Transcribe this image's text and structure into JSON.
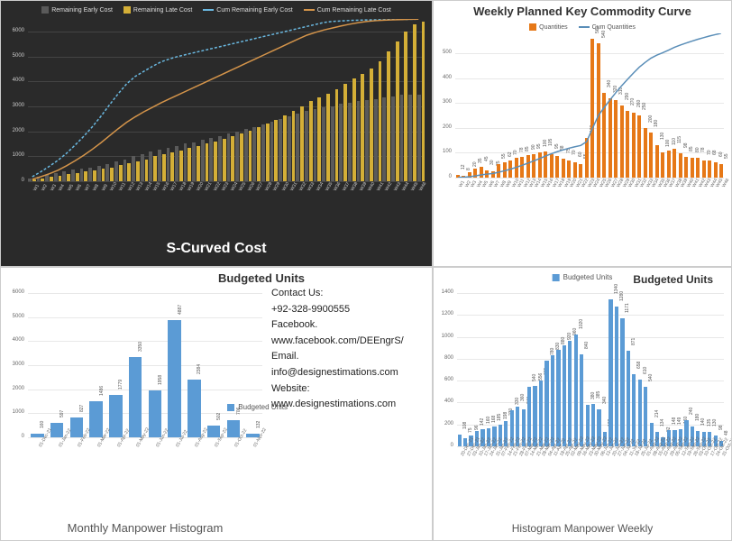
{
  "scurve": {
    "title": "S-Curved Cost",
    "legend": [
      {
        "label": "Remaining Early Cost",
        "type": "bar",
        "color": "#5a5a5a"
      },
      {
        "label": "Remaining Late Cost",
        "type": "bar",
        "color": "#d4af37"
      },
      {
        "label": "Cum Remaining Early Cost",
        "type": "line",
        "color": "#6ab8e0"
      },
      {
        "label": "Cum Remaining Late Cost",
        "type": "line",
        "color": "#d4944a"
      }
    ],
    "ymax": 6500,
    "ytick_step": 1000,
    "background_color": "#2a2a2a",
    "bars_early_color": "#5a5a5a",
    "bars_late_color": "#d4af37",
    "line_early_color": "#6ab8e0",
    "line_late_color": "#d4944a",
    "grid_color": "#444444",
    "text_color": "#cccccc",
    "categories": [
      "W1",
      "W2",
      "W3",
      "W4",
      "W5",
      "W6",
      "W7",
      "W8",
      "W9",
      "W10",
      "W11",
      "W12",
      "W13",
      "W14",
      "W15",
      "W16",
      "W17",
      "W18",
      "W19",
      "W20",
      "W21",
      "W22",
      "W23",
      "W24",
      "W25",
      "W26",
      "W27",
      "W28",
      "W29",
      "W30",
      "W31",
      "W32",
      "W33",
      "W34",
      "W35",
      "W36",
      "W37",
      "W38",
      "W39",
      "W40",
      "W41",
      "W42",
      "W43",
      "W44",
      "W45",
      "W46"
    ],
    "early": [
      120,
      180,
      260,
      320,
      400,
      480,
      500,
      560,
      620,
      700,
      780,
      860,
      1000,
      1100,
      1200,
      1280,
      1350,
      1420,
      1500,
      1560,
      1650,
      1720,
      1800,
      1900,
      1980,
      2080,
      2180,
      2280,
      2400,
      2500,
      2600,
      2700,
      2800,
      2880,
      2960,
      3000,
      3100,
      3150,
      3200,
      3260,
      3300,
      3350,
      3400,
      3450,
      3460,
      3480
    ],
    "late": [
      80,
      120,
      180,
      220,
      280,
      320,
      380,
      440,
      500,
      560,
      640,
      720,
      800,
      880,
      1000,
      1100,
      1160,
      1240,
      1320,
      1400,
      1500,
      1600,
      1700,
      1800,
      1920,
      2040,
      2160,
      2300,
      2460,
      2620,
      2800,
      3000,
      3200,
      3360,
      3500,
      3700,
      3900,
      4100,
      4300,
      4500,
      4800,
      5200,
      5600,
      6000,
      6300,
      6400
    ],
    "cum_early": [
      180,
      380,
      600,
      840,
      1120,
      1450,
      1800,
      2180,
      2600,
      3060,
      3500,
      3900,
      4200,
      4400,
      4600,
      4780,
      4900,
      5000,
      5080,
      5160,
      5240,
      5320,
      5400,
      5480,
      5560,
      5640,
      5720,
      5800,
      5880,
      5960,
      6040,
      6120,
      6200,
      6280,
      6360,
      6400,
      6420,
      6440,
      6450,
      6460,
      6465,
      6470,
      6475,
      6480,
      6485,
      6490
    ],
    "cum_late": [
      80,
      180,
      300,
      440,
      620,
      820,
      1040,
      1280,
      1540,
      1820,
      2100,
      2360,
      2580,
      2780,
      2960,
      3140,
      3300,
      3460,
      3620,
      3780,
      3940,
      4100,
      4260,
      4420,
      4580,
      4740,
      4900,
      5060,
      5220,
      5380,
      5540,
      5700,
      5850,
      5960,
      6060,
      6140,
      6220,
      6290,
      6350,
      6400,
      6430,
      6450,
      6465,
      6475,
      6485,
      6490
    ]
  },
  "weekly_commodity": {
    "title": "Weekly Planned Key Commodity Curve",
    "legend": [
      {
        "label": "Quantities",
        "type": "bar",
        "color": "#e67817"
      },
      {
        "label": "Cum Quantities",
        "type": "line",
        "color": "#5a8eb8"
      }
    ],
    "ymax": 580,
    "ytick_step": 100,
    "background_color": "#ffffff",
    "bar_color": "#e67817",
    "line_color": "#5a8eb8",
    "grid_color": "#e8e8e8",
    "categories": [
      "W1",
      "W2",
      "W3",
      "W4",
      "W5",
      "W6",
      "W7",
      "W8",
      "W9",
      "W10",
      "W11",
      "W12",
      "W13",
      "W14",
      "W15",
      "W16",
      "W17",
      "W18",
      "W19",
      "W20",
      "W21",
      "W22",
      "W23",
      "W24",
      "W25",
      "W26",
      "W27",
      "W28",
      "W29",
      "W30",
      "W31",
      "W32",
      "W33",
      "W34",
      "W35",
      "W36",
      "W37",
      "W38",
      "W39",
      "W40",
      "W41",
      "W42",
      "W43",
      "W44",
      "W45",
      "W46"
    ],
    "values": [
      12,
      8,
      20,
      35,
      45,
      30,
      25,
      55,
      62,
      70,
      78,
      85,
      90,
      95,
      100,
      105,
      95,
      88,
      75,
      70,
      60,
      55,
      160,
      560,
      540,
      340,
      320,
      310,
      290,
      270,
      260,
      250,
      200,
      180,
      130,
      100,
      110,
      115,
      98,
      85,
      80,
      78,
      70,
      68,
      60,
      55
    ],
    "cum": [
      12,
      20,
      40,
      75,
      120,
      150,
      175,
      230,
      292,
      362,
      440,
      525,
      615,
      710,
      810,
      915,
      1010,
      1098,
      1173,
      1243,
      1303,
      1358,
      1518,
      2078,
      2618,
      2958,
      3278,
      3588,
      3878,
      4148,
      4408,
      4658,
      4858,
      5038,
      5168,
      5268,
      5378,
      5493,
      5591,
      5676,
      5756,
      5834,
      5904,
      5972,
      6032,
      6087
    ],
    "cum_max": 6087
  },
  "monthly_manpower": {
    "title": "Budgeted Units",
    "bottom_title": "Monthly Manpower Histogram",
    "legend_label": "Budgeted Units",
    "ymax": 6000,
    "ytick_step": 1000,
    "bar_color": "#5b9bd5",
    "grid_color": "#e8e8e8",
    "categories": [
      "01-Dec-21",
      "01-Jan-22",
      "01-Feb-22",
      "01-Mar-22",
      "01-Apr-22",
      "01-May-22",
      "01-Jun-22",
      "01-Jul-22",
      "01-Aug-22",
      "01-Sep-22",
      "01-Oct-22",
      "01-Nov-22"
    ],
    "values": [
      160,
      597,
      827,
      1486,
      1779,
      3350,
      1958,
      4887,
      2384,
      502,
      706,
      132
    ]
  },
  "weekly_manpower": {
    "title": "Budgeted Units",
    "bottom_title": "Histogram Manpower Weekly",
    "legend_label": "Budgeted Units",
    "ymax": 1400,
    "ytick_step": 200,
    "bar_color": "#5b9bd5",
    "grid_color": "#e8e8e8",
    "categories": [
      "20-Dec-21",
      "27-Dec-21",
      "03-Jan-22",
      "10-Jan-22",
      "17-Jan-22",
      "24-Jan-22",
      "31-Jan-22",
      "07-Feb-22",
      "14-Feb-22",
      "21-Feb-22",
      "28-Feb-22",
      "07-Mar-22",
      "14-Mar-22",
      "21-Mar-22",
      "28-Mar-22",
      "04-Apr-22",
      "11-Apr-22",
      "18-Apr-22",
      "25-Apr-22",
      "02-May-22",
      "09-May-22",
      "16-May-22",
      "23-May-22",
      "30-May-22",
      "06-Jun-22",
      "13-Jun-22",
      "20-Jun-22",
      "27-Jun-22",
      "04-Jul-22",
      "11-Jul-22",
      "18-Jul-22",
      "25-Jul-22",
      "01-Aug-22",
      "08-Aug-22",
      "15-Aug-22",
      "22-Aug-22",
      "29-Aug-22",
      "05-Sep-22",
      "12-Sep-22",
      "19-Sep-22",
      "26-Sep-22",
      "03-Oct-22",
      "10-Oct-22",
      "17-Oct-22",
      "24-Oct-22",
      "31-Oct-22"
    ],
    "values": [
      108,
      75,
      96,
      142,
      160,
      168,
      185,
      198,
      230,
      330,
      360,
      340,
      540,
      556,
      605,
      780,
      830,
      880,
      920,
      960,
      1020,
      840,
      380,
      385,
      340,
      132,
      1340,
      1280,
      1171,
      871,
      658,
      610,
      540,
      214,
      134,
      82,
      148,
      149,
      160,
      240,
      180,
      140,
      135,
      130,
      98,
      48
    ]
  },
  "contact": {
    "heading": "Contact Us:",
    "phone": "+92-328-9900555",
    "facebook_label": "Facebook.",
    "facebook": "www.facebook.com/DEEngrS/",
    "email_label": "Email.",
    "email": "info@designestimations.com",
    "website_label": "Website:",
    "website": "www.designestimations.com"
  }
}
